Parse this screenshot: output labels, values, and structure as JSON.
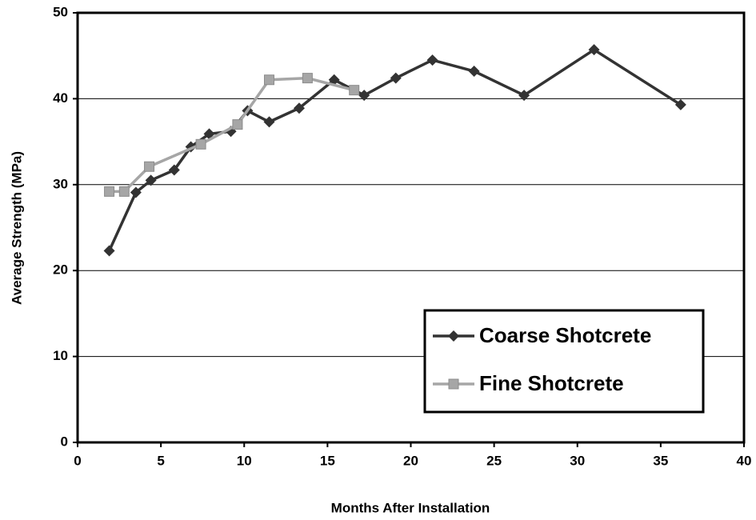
{
  "chart_data": {
    "type": "line",
    "x_label": "Months After Installation",
    "y_label": "Average Strength (MPa)",
    "xlim": [
      0,
      40
    ],
    "xticks": [
      0,
      5,
      10,
      15,
      20,
      25,
      30,
      35,
      40
    ],
    "ylim": [
      0,
      50
    ],
    "yticks": [
      0,
      10,
      20,
      30,
      40,
      50
    ],
    "grid": true,
    "legend": "lower right",
    "series": [
      {
        "name": "Coarse Shotcrete",
        "color": "#333333",
        "marker": "diamond",
        "x": [
          1.9,
          3.5,
          4.4,
          5.8,
          6.8,
          7.9,
          9.2,
          10.2,
          11.5,
          13.3,
          15.4,
          17.2,
          19.1,
          21.3,
          23.8,
          26.8,
          31.0,
          36.2
        ],
        "values": [
          22.3,
          29.1,
          30.5,
          31.7,
          34.4,
          35.9,
          36.2,
          38.6,
          37.3,
          38.9,
          42.2,
          40.4,
          42.4,
          44.5,
          43.2,
          40.4,
          45.7,
          39.3
        ]
      },
      {
        "name": "Fine Shotcrete",
        "color": "#a6a6a6",
        "marker": "square",
        "x": [
          1.9,
          2.8,
          4.3,
          7.4,
          9.6,
          11.5,
          13.8,
          16.6
        ],
        "values": [
          29.2,
          29.2,
          32.1,
          34.7,
          37.0,
          42.2,
          42.4,
          41.0
        ]
      }
    ]
  }
}
